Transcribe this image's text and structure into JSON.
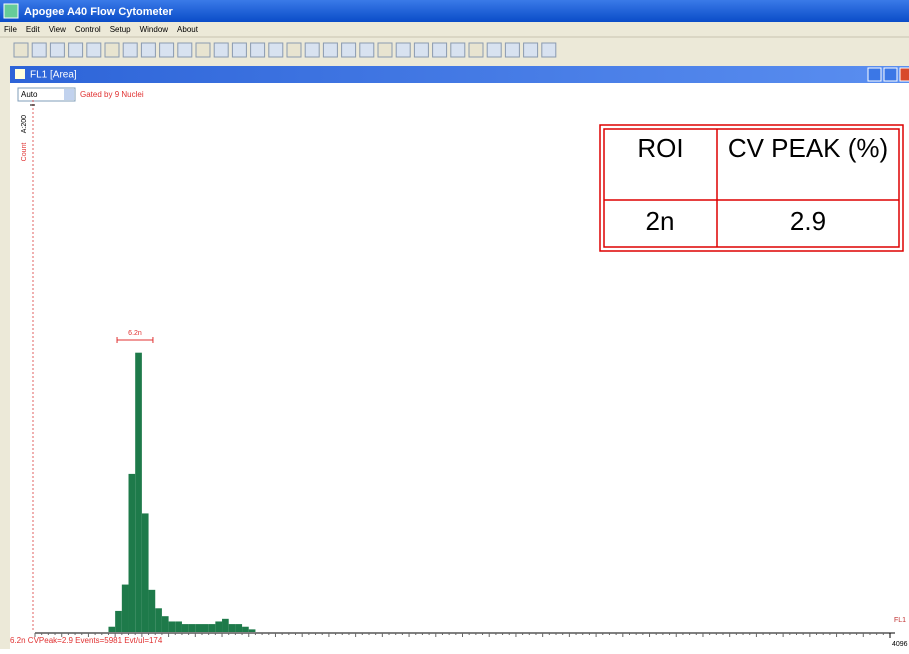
{
  "window": {
    "title": "Apogee A40 Flow Cytometer",
    "menu": [
      "File",
      "Edit",
      "View",
      "Control",
      "Setup",
      "Window",
      "About"
    ]
  },
  "child": {
    "title": "FL1 [Area]"
  },
  "controls": {
    "dropdown": "Auto",
    "gate": "Gated by 9 Nuclei"
  },
  "chart_data": {
    "type": "histogram",
    "ylabel": "Count",
    "xlabel": "FL1",
    "color": "#1e7a4a",
    "bins": [
      352,
      384,
      416,
      448,
      480,
      512,
      544,
      576,
      608,
      640,
      672,
      704,
      736,
      768,
      800,
      832,
      864,
      896,
      928,
      960,
      992,
      1024,
      1056
    ],
    "counts": [
      2,
      8,
      18,
      60,
      106,
      45,
      16,
      9,
      6,
      4,
      4,
      3,
      3,
      3,
      3,
      3,
      4,
      5,
      3,
      3,
      2,
      1
    ],
    "xlim": [
      0,
      4096
    ],
    "ylim": [
      0,
      200
    ],
    "xticks": [
      {
        "value": 4096,
        "label": "4096"
      }
    ],
    "yticks": [
      {
        "value": 200,
        "label": "A:200"
      }
    ],
    "region": {
      "label": "6.2n",
      "range": [
        393,
        565
      ]
    }
  },
  "status": "6.2n CVPeak=2.9 Events=5981 Evt/ul=174",
  "table": {
    "header": [
      "ROI",
      "CV PEAK (%)"
    ],
    "rows": [
      [
        "2n",
        "2.9"
      ]
    ]
  }
}
